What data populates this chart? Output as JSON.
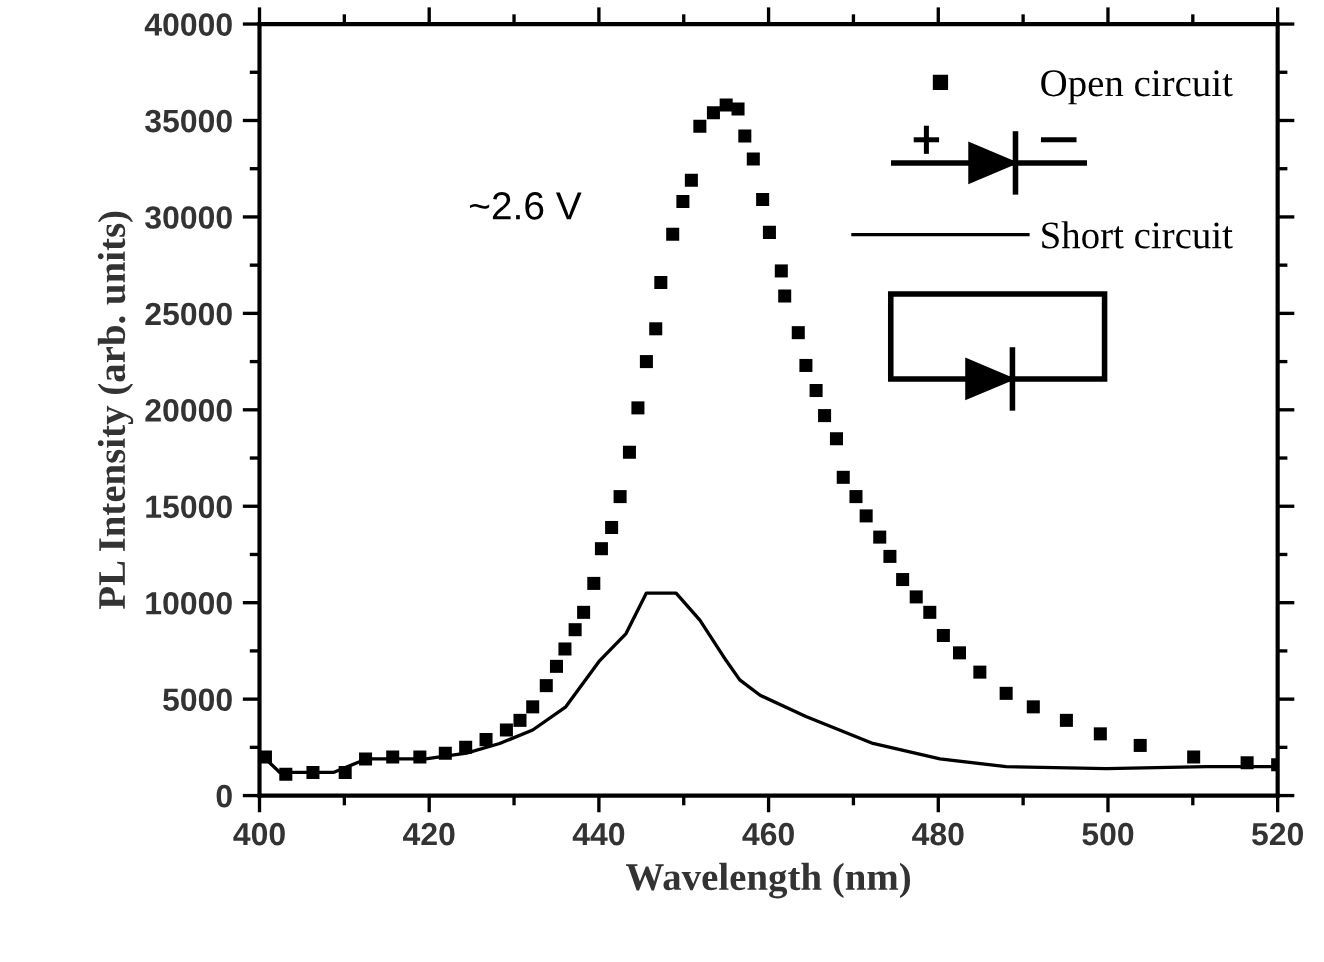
{
  "chart_data": {
    "type": "scatter",
    "xlabel": "Wavelength (nm)",
    "ylabel": "PL Intensity (arb. units)",
    "xlim": [
      400,
      520
    ],
    "xticks": [
      400,
      420,
      440,
      460,
      480,
      500,
      520
    ],
    "ylim": [
      0,
      40000
    ],
    "yticks": [
      0,
      5000,
      10000,
      15000,
      20000,
      25000,
      30000,
      35000,
      40000
    ],
    "legend": "top right",
    "grid": false,
    "annotations": [
      "~2.6 V"
    ],
    "series": [
      {
        "name": "Open circuit",
        "marker": "square",
        "color": "#000000",
        "x": [
          400.7,
          403.1,
          406.3,
          410.1,
          412.5,
          415.7,
          418.9,
          421.9,
          424.3,
          426.7,
          429.1,
          430.7,
          432.2,
          433.8,
          435.0,
          436.0,
          437.2,
          438.2,
          439.4,
          440.3,
          441.5,
          442.5,
          443.6,
          444.6,
          445.6,
          446.7,
          447.3,
          448.7,
          449.9,
          450.9,
          451.9,
          453.5,
          455.0,
          456.4,
          457.2,
          458.2,
          459.3,
          460.1,
          461.5,
          461.9,
          463.5,
          464.4,
          465.6,
          466.6,
          468.0,
          468.8,
          470.3,
          471.5,
          473.1,
          474.3,
          475.8,
          477.4,
          479.0,
          480.6,
          482.5,
          484.9,
          488.0,
          491.2,
          495.1,
          499.1,
          503.8,
          510.1,
          516.4,
          520.0
        ],
        "values": [
          2000,
          1100,
          1200,
          1200,
          1900,
          2000,
          2000,
          2200,
          2500,
          2900,
          3400,
          3900,
          4600,
          5700,
          6700,
          7600,
          8600,
          9500,
          11000,
          12800,
          13900,
          15500,
          17800,
          20100,
          22500,
          24200,
          26600,
          29100,
          30800,
          31900,
          34700,
          35400,
          35800,
          35600,
          34200,
          33000,
          30900,
          29200,
          27200,
          25900,
          24000,
          22300,
          21000,
          19700,
          18500,
          16500,
          15500,
          14500,
          13400,
          12400,
          11200,
          10300,
          9500,
          8300,
          7400,
          6400,
          5300,
          4600,
          3900,
          3200,
          2600,
          2000,
          1700,
          1600
        ]
      },
      {
        "name": "Short circuit",
        "type": "line",
        "line_style": "solid",
        "color": "#000000",
        "x": [
          400.0,
          402.4,
          408.7,
          412.6,
          419.6,
          424.4,
          428.3,
          432.2,
          436.1,
          440.1,
          443.2,
          445.6,
          447.9,
          449.1,
          451.9,
          455.0,
          456.6,
          459.0,
          464.4,
          472.3,
          480.2,
          488.0,
          499.8,
          511.6,
          520.0
        ],
        "values": [
          2200,
          1200,
          1200,
          1900,
          1900,
          2200,
          2700,
          3400,
          4600,
          7000,
          8400,
          10500,
          10500,
          10500,
          9100,
          7000,
          6000,
          5200,
          4100,
          2700,
          1900,
          1500,
          1400,
          1500,
          1500
        ]
      }
    ]
  }
}
